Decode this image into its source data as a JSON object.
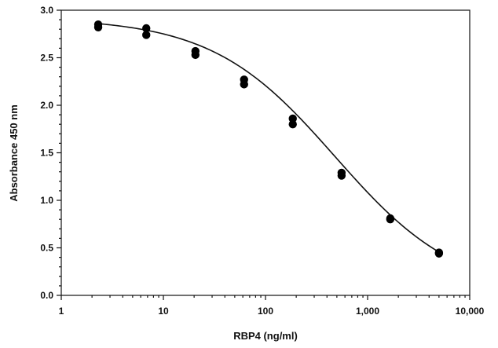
{
  "chart_data": {
    "type": "scatter",
    "title": "",
    "xlabel": "RBP4 (ng/ml)",
    "ylabel": "Absorbance 450 nm",
    "xscale": "log",
    "xlim": [
      1,
      10000
    ],
    "ylim": [
      0.0,
      3.0
    ],
    "x_ticks": [
      1,
      10,
      100,
      1000,
      10000
    ],
    "x_tick_labels": [
      "1",
      "10",
      "100",
      "1,000",
      "10,000"
    ],
    "y_ticks": [
      0.0,
      0.5,
      1.0,
      1.5,
      2.0,
      2.5,
      3.0
    ],
    "y_tick_labels": [
      "0.0",
      "0.5",
      "1.0",
      "1.5",
      "2.0",
      "2.5",
      "3.0"
    ],
    "grid": false,
    "legend": "none",
    "colors": {
      "points": "#000000",
      "curve": "#111111"
    },
    "series": [
      {
        "type": "scatter",
        "points": [
          {
            "x": 2.3,
            "y": 2.85
          },
          {
            "x": 2.3,
            "y": 2.82
          },
          {
            "x": 6.8,
            "y": 2.81
          },
          {
            "x": 6.8,
            "y": 2.74
          },
          {
            "x": 20.6,
            "y": 2.57
          },
          {
            "x": 20.6,
            "y": 2.53
          },
          {
            "x": 61.7,
            "y": 2.27
          },
          {
            "x": 61.7,
            "y": 2.22
          },
          {
            "x": 185,
            "y": 1.86
          },
          {
            "x": 185,
            "y": 1.8
          },
          {
            "x": 556,
            "y": 1.29
          },
          {
            "x": 556,
            "y": 1.26
          },
          {
            "x": 1667,
            "y": 0.81
          },
          {
            "x": 1667,
            "y": 0.8
          },
          {
            "x": 5000,
            "y": 0.45
          },
          {
            "x": 5000,
            "y": 0.44
          }
        ]
      },
      {
        "type": "line",
        "fit": "4PL",
        "params": {
          "top": 2.92,
          "bottom": 0.0,
          "ec50": 480,
          "hill": 0.72
        },
        "x_range": [
          2.3,
          5000
        ]
      }
    ]
  }
}
